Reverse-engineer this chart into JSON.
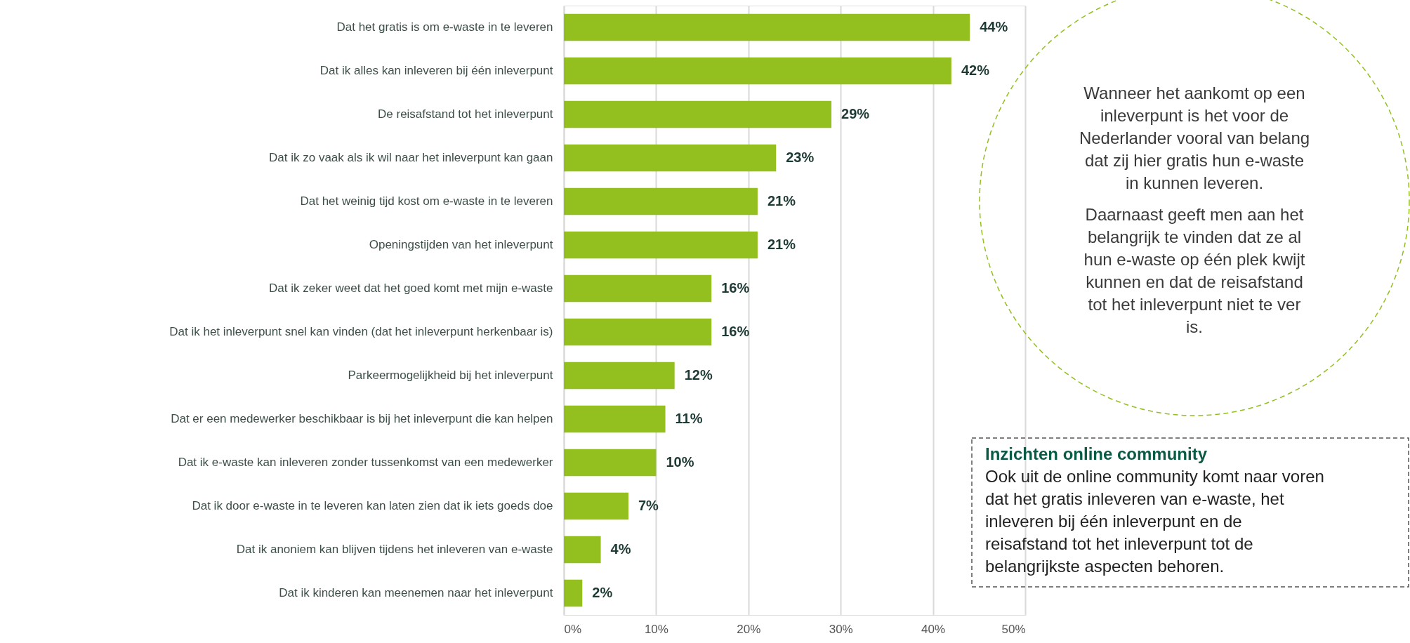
{
  "chart_data": {
    "type": "bar",
    "orientation": "horizontal",
    "categories": [
      "Dat het gratis is om e-waste in te leveren",
      "Dat ik alles kan inleveren bij één inleverpunt",
      "De reisafstand tot het inleverpunt",
      "Dat ik zo vaak als ik wil naar het inleverpunt kan gaan",
      "Dat het weinig tijd kost om e-waste in te leveren",
      "Openingstijden van het inleverpunt",
      "Dat ik zeker weet dat het goed komt met mijn e-waste",
      "Dat ik het inleverpunt snel kan vinden (dat het inleverpunt herkenbaar is)",
      "Parkeermogelijkheid bij het inleverpunt",
      "Dat er een medewerker beschikbaar is bij het inleverpunt die kan helpen",
      "Dat ik e-waste kan inleveren zonder tussenkomst van een medewerker",
      "Dat ik door e-waste in te leveren kan laten zien dat ik iets goeds doe",
      "Dat ik anoniem kan blijven tijdens het inleveren van e-waste",
      "Dat ik kinderen kan meenemen naar het inleverpunt"
    ],
    "values": [
      44,
      42,
      29,
      23,
      21,
      21,
      16,
      16,
      12,
      11,
      10,
      7,
      4,
      2
    ],
    "value_labels": [
      "44%",
      "42%",
      "29%",
      "23%",
      "21%",
      "21%",
      "16%",
      "16%",
      "12%",
      "11%",
      "10%",
      "7%",
      "4%",
      "2%"
    ],
    "color": "#93c01f",
    "xlim": [
      0,
      50
    ],
    "xticks": [
      {
        "value": 0,
        "label": "0%"
      },
      {
        "value": 10,
        "label": "10%"
      },
      {
        "value": 20,
        "label": "20%"
      },
      {
        "value": 30,
        "label": "30%"
      },
      {
        "value": 40,
        "label": "40%"
      },
      {
        "value": 50,
        "label": "50%"
      }
    ],
    "grid": "x",
    "annotations": [
      "Wanneer het aankomt op een inleverpunt is het voor de Nederlander vooral van belang dat zij hier gratis hun e-waste in kunnen leveren.",
      "Daarnaast geeft men aan het belangrijk te vinden dat ze al hun e-waste op één plek kwijt kunnen en dat de reisafstand tot het inleverpunt niet te ver is.",
      "Inzichten online community",
      "Ook uit de online community komt naar voren dat het gratis inleveren van e-waste, het inleveren bij één inleverpunt en de reisafstand tot het inleverpunt tot de belangrijkste aspecten behoren."
    ]
  }
}
